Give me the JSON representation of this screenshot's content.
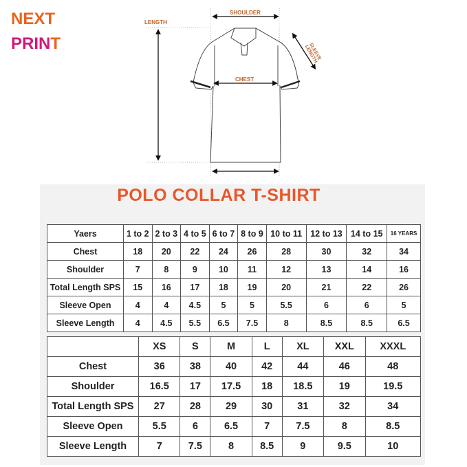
{
  "logo": {
    "line1": "NEXT",
    "line2_a": "PRIN",
    "line2_b": "T"
  },
  "diagram": {
    "labels": {
      "shoulder": "SHOULDER",
      "length": "LENGTH",
      "chest": "CHEST",
      "sleeve_length": "SLEEVE LENGTH"
    }
  },
  "title": "POLO COLLAR T-SHIRT",
  "kids_table": {
    "header": [
      "Yaers",
      "1 to 2",
      "2 to 3",
      "4 to 5",
      "6 to 7",
      "8 to 9",
      "10 to 11",
      "12 to 13",
      "14 to 15",
      "16 YEARS"
    ],
    "rows": [
      [
        "Chest",
        "18",
        "20",
        "22",
        "24",
        "26",
        "28",
        "30",
        "32",
        "34"
      ],
      [
        "Shoulder",
        "7",
        "8",
        "9",
        "10",
        "11",
        "12",
        "13",
        "14",
        "16"
      ],
      [
        "Total Length SPS",
        "15",
        "16",
        "17",
        "18",
        "19",
        "20",
        "21",
        "22",
        "26"
      ],
      [
        "Sleeve Open",
        "4",
        "4",
        "4.5",
        "5",
        "5",
        "5.5",
        "6",
        "6",
        "5"
      ],
      [
        "Sleeve Length",
        "4",
        "4.5",
        "5.5",
        "6.5",
        "7.5",
        "8",
        "8.5",
        "8.5",
        "6.5"
      ]
    ]
  },
  "adult_table": {
    "header": [
      "",
      "XS",
      "S",
      "M",
      "L",
      "XL",
      "XXL",
      "XXXL"
    ],
    "rows": [
      [
        "Chest",
        "36",
        "38",
        "40",
        "42",
        "44",
        "46",
        "48"
      ],
      [
        "Shoulder",
        "16.5",
        "17",
        "17.5",
        "18",
        "18.5",
        "19",
        "19.5"
      ],
      [
        "Total Length SPS",
        "27",
        "28",
        "29",
        "30",
        "31",
        "32",
        "34"
      ],
      [
        "Sleeve Open",
        "5.5",
        "6",
        "6.5",
        "7",
        "7.5",
        "8",
        "8.5"
      ],
      [
        "Sleeve Length",
        "7",
        "7.5",
        "8",
        "8.5",
        "9",
        "9.5",
        "10"
      ]
    ]
  },
  "colors": {
    "title": "#e8572a",
    "logo_orange": "#e8641e",
    "logo_magenta": "#d0187a",
    "measure_label": "#c0652a"
  }
}
